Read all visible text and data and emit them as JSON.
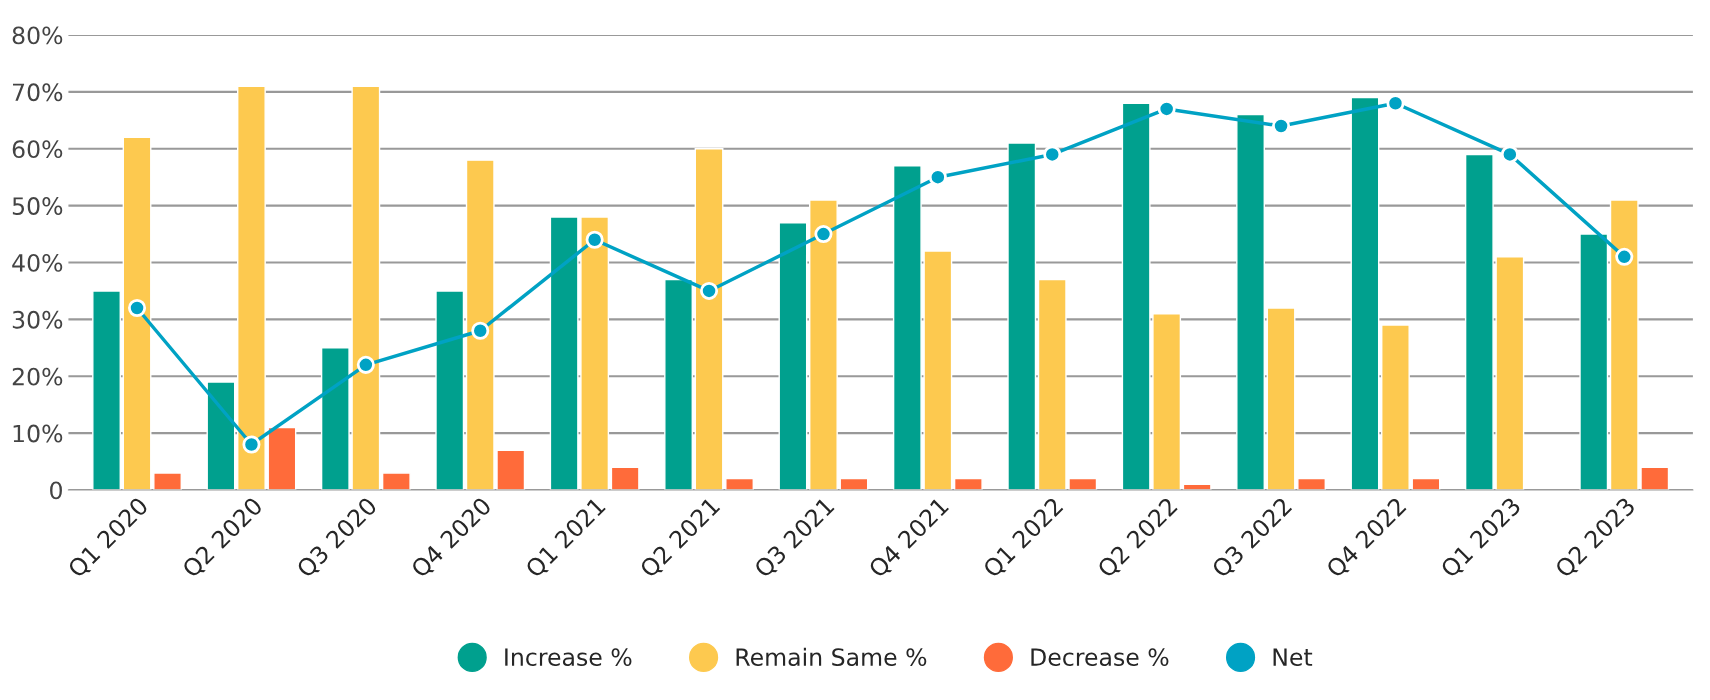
{
  "chart_data": {
    "type": "bar",
    "categories": [
      "Q1 2020",
      "Q2 2020",
      "Q3 2020",
      "Q4 2020",
      "Q1 2021",
      "Q2 2021",
      "Q3 2021",
      "Q4 2021",
      "Q1 2022",
      "Q2 2022",
      "Q3 2022",
      "Q4 2022",
      "Q1 2023",
      "Q2 2023"
    ],
    "series": [
      {
        "name": "Increase %",
        "color": "#00a08e",
        "values": [
          35,
          19,
          25,
          35,
          48,
          37,
          47,
          57,
          61,
          68,
          66,
          69,
          59,
          45
        ]
      },
      {
        "name": "Remain Same %",
        "color": "#fdc94f",
        "values": [
          62,
          71,
          71,
          58,
          48,
          60,
          51,
          42,
          37,
          31,
          32,
          29,
          41,
          51
        ]
      },
      {
        "name": "Decrease %",
        "color": "#ff6b3a",
        "values": [
          3,
          11,
          3,
          7,
          4,
          2,
          2,
          2,
          2,
          1,
          2,
          2,
          null,
          4
        ]
      },
      {
        "name": "Net",
        "type": "line",
        "color": "#00a2c4",
        "marker": "circle",
        "values": [
          32,
          8,
          22,
          28,
          44,
          35,
          45,
          55,
          59,
          67,
          64,
          68,
          59,
          41
        ]
      }
    ],
    "ylim": [
      0,
      80
    ],
    "yticks": [
      {
        "value": 0,
        "label": "0"
      },
      {
        "value": 10,
        "label": "10%"
      },
      {
        "value": 20,
        "label": "20%"
      },
      {
        "value": 30,
        "label": "30%"
      },
      {
        "value": 40,
        "label": "40%"
      },
      {
        "value": 50,
        "label": "50%"
      },
      {
        "value": 60,
        "label": "60%"
      },
      {
        "value": 70,
        "label": "70%"
      },
      {
        "value": 80,
        "label": "80%"
      }
    ],
    "grid": "y",
    "legend": "bottom"
  }
}
